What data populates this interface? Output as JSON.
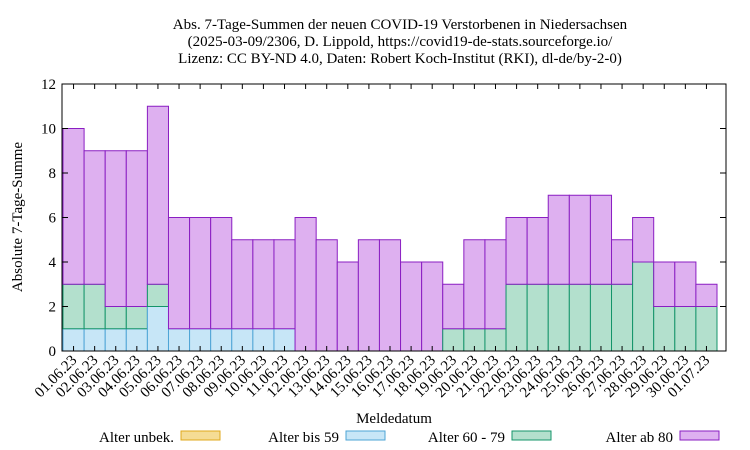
{
  "chart_data": {
    "type": "bar",
    "stacked": true,
    "title_lines": [
      "Abs. 7-Tage-Summen der neuen COVID-19 Verstorbenen in Niedersachsen",
      "(2025-03-09/2306, D. Lippold, https://covid19-de-stats.sourceforge.io/",
      "Lizenz: CC BY-ND 4.0, Daten: Robert Koch-Institut (RKI), dl-de/by-2-0)"
    ],
    "xlabel": "Meldedatum",
    "ylabel": "Absolute 7-Tage-Summe",
    "ylim": [
      0,
      12
    ],
    "yticks": [
      0,
      2,
      4,
      6,
      8,
      10,
      12
    ],
    "grid": false,
    "legend_position": "bottom",
    "categories": [
      "01.06.23",
      "02.06.23",
      "03.06.23",
      "04.06.23",
      "05.06.23",
      "06.06.23",
      "07.06.23",
      "08.06.23",
      "09.06.23",
      "10.06.23",
      "11.06.23",
      "12.06.23",
      "13.06.23",
      "14.06.23",
      "15.06.23",
      "16.06.23",
      "17.06.23",
      "18.06.23",
      "19.06.23",
      "20.06.23",
      "21.06.23",
      "22.06.23",
      "23.06.23",
      "24.06.23",
      "25.06.23",
      "26.06.23",
      "27.06.23",
      "28.06.23",
      "29.06.23",
      "30.06.23",
      "01.07.23"
    ],
    "series": [
      {
        "name": "Alter unbek.",
        "color": "#f5dc95",
        "stroke": "#e0a81c",
        "values": [
          0,
          0,
          0,
          0,
          0,
          0,
          0,
          0,
          0,
          0,
          0,
          0,
          0,
          0,
          0,
          0,
          0,
          0,
          0,
          0,
          0,
          0,
          0,
          0,
          0,
          0,
          0,
          0,
          0,
          0,
          0
        ]
      },
      {
        "name": "Alter bis 59",
        "color": "#c7e6f7",
        "stroke": "#4ea4d6",
        "values": [
          1,
          1,
          1,
          1,
          2,
          1,
          1,
          1,
          1,
          1,
          1,
          0,
          0,
          0,
          0,
          0,
          0,
          0,
          0,
          0,
          0,
          0,
          0,
          0,
          0,
          0,
          0,
          0,
          0,
          0,
          0
        ]
      },
      {
        "name": "Alter 60 - 79",
        "color": "#b3e0cd",
        "stroke": "#14946a",
        "values": [
          2,
          2,
          1,
          1,
          1,
          0,
          0,
          0,
          0,
          0,
          0,
          0,
          0,
          0,
          0,
          0,
          0,
          0,
          1,
          1,
          1,
          3,
          3,
          3,
          3,
          3,
          3,
          4,
          2,
          2,
          2
        ]
      },
      {
        "name": "Alter ab 80",
        "color": "#deb0f0",
        "stroke": "#8a1ec2",
        "values": [
          7,
          6,
          7,
          7,
          8,
          5,
          5,
          5,
          4,
          4,
          4,
          6,
          5,
          4,
          5,
          5,
          4,
          4,
          2,
          4,
          4,
          3,
          3,
          4,
          4,
          4,
          2,
          2,
          2,
          2,
          1
        ]
      }
    ]
  }
}
